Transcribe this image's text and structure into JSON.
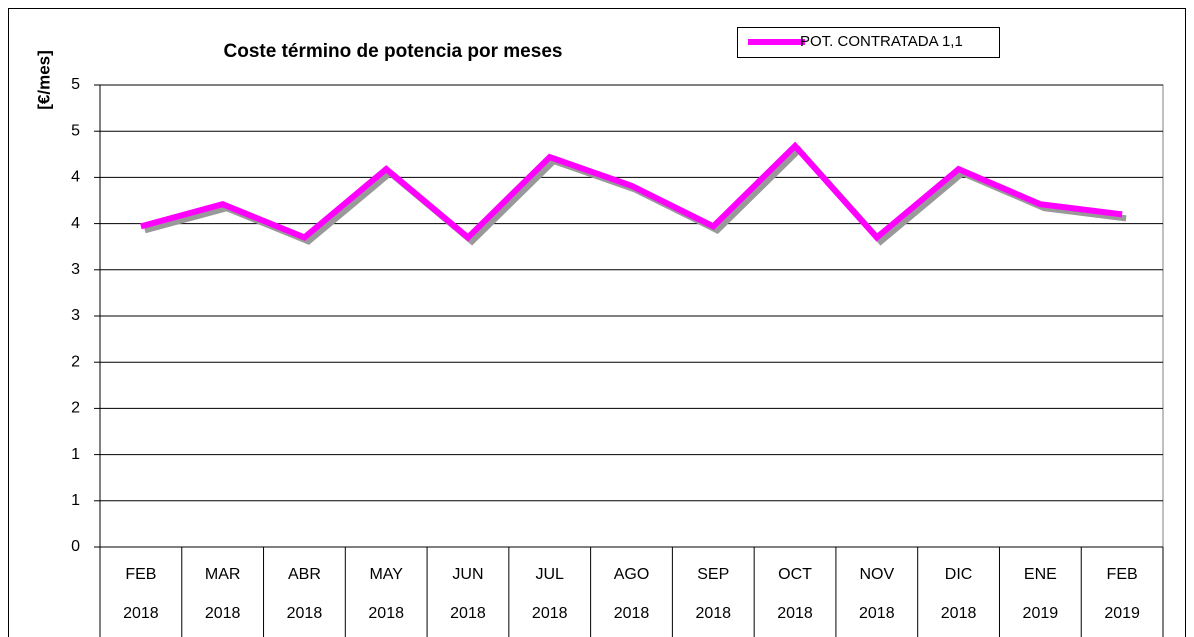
{
  "chart_data": {
    "type": "line",
    "title": "Coste término de potencia por meses",
    "y_label": "[€/mes]",
    "categories": [
      [
        "FEB",
        "2018"
      ],
      [
        "MAR",
        "2018"
      ],
      [
        "ABR",
        "2018"
      ],
      [
        "MAY",
        "2018"
      ],
      [
        "JUN",
        "2018"
      ],
      [
        "JUL",
        "2018"
      ],
      [
        "AGO",
        "2018"
      ],
      [
        "SEP",
        "2018"
      ],
      [
        "OCT",
        "2018"
      ],
      [
        "NOV",
        "2018"
      ],
      [
        "DIC",
        "2018"
      ],
      [
        "ENE",
        "2019"
      ],
      [
        "FEB",
        "2019"
      ]
    ],
    "series": [
      {
        "name": "POT. CONTRATADA 1,1",
        "color": "#ff00ff",
        "values": [
          3.47,
          3.71,
          3.35,
          4.09,
          3.35,
          4.22,
          3.91,
          3.47,
          4.34,
          3.35,
          4.09,
          3.71,
          3.6
        ]
      }
    ],
    "ylim": [
      0,
      5
    ],
    "yticks": [
      0,
      {
        "value": 0.5,
        "label": "1"
      },
      1,
      {
        "value": 1.5,
        "label": "2"
      },
      2,
      {
        "value": 2.5,
        "label": "3"
      },
      3,
      {
        "value": 3.5,
        "label": "4"
      },
      4,
      {
        "value": 4.5,
        "label": "5"
      },
      5
    ],
    "grid": true,
    "legend": "top-right",
    "shadow_color": "#999999"
  }
}
